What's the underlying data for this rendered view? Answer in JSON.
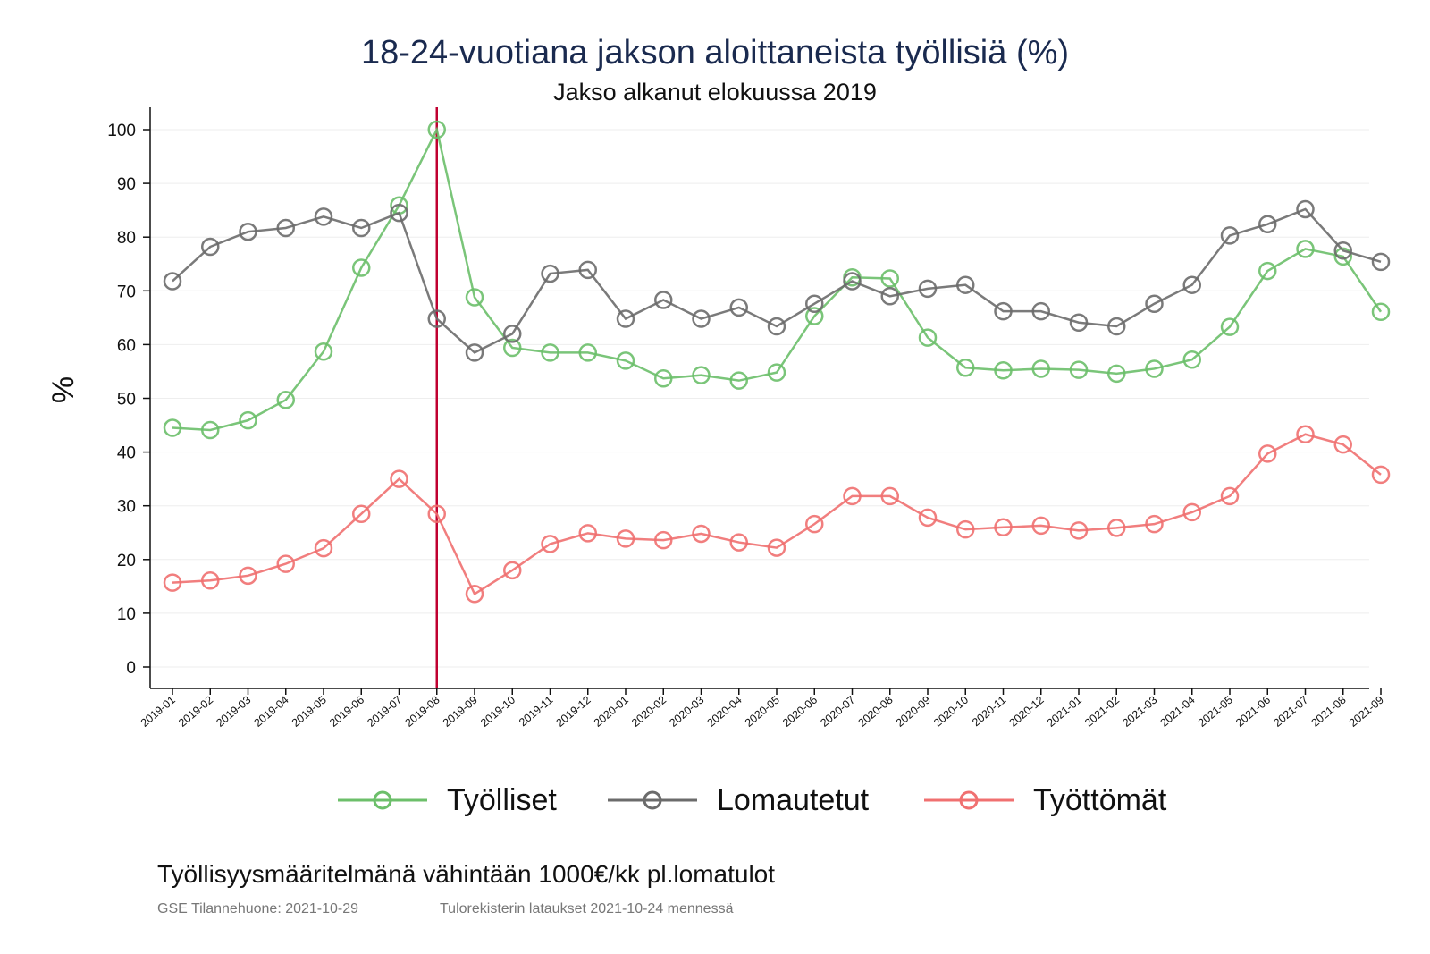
{
  "colors": {
    "tyolliset": "#6cbf6a",
    "lomautetut": "#6b6b6b",
    "tyottomat": "#f07070",
    "marker_line": "#c00030",
    "title": "#1a2a4f"
  },
  "chart_data": {
    "type": "line",
    "title": "18-24-vuotiana jakson aloittaneista työllisiä (%)",
    "subtitle": "Jakso alkanut elokuussa 2019",
    "ylabel": "%",
    "xlabel": "",
    "ylim": [
      0,
      100
    ],
    "yticks": [
      0,
      10,
      20,
      30,
      40,
      50,
      60,
      70,
      80,
      90,
      100
    ],
    "grid": true,
    "vertical_marker": "2019-08",
    "categories": [
      "2019-01",
      "2019-02",
      "2019-03",
      "2019-04",
      "2019-05",
      "2019-06",
      "2019-07",
      "2019-08",
      "2019-09",
      "2019-10",
      "2019-11",
      "2019-12",
      "2020-01",
      "2020-02",
      "2020-03",
      "2020-04",
      "2020-05",
      "2020-06",
      "2020-07",
      "2020-08",
      "2020-09",
      "2020-10",
      "2020-11",
      "2020-12",
      "2021-01",
      "2021-02",
      "2021-03",
      "2021-04",
      "2021-05",
      "2021-06",
      "2021-07",
      "2021-08",
      "2021-09"
    ],
    "series": [
      {
        "name": "Työlliset",
        "key": "tyolliset",
        "values": [
          44.5,
          44.1,
          45.9,
          49.7,
          58.7,
          74.3,
          85.9,
          100.0,
          68.8,
          59.4,
          58.5,
          58.5,
          57.0,
          53.7,
          54.3,
          53.3,
          54.8,
          65.3,
          72.5,
          72.3,
          61.3,
          55.7,
          55.2,
          55.5,
          55.3,
          54.6,
          55.5,
          57.2,
          63.3,
          73.7,
          77.8,
          76.4,
          66.1
        ]
      },
      {
        "name": "Lomautetut",
        "key": "lomautetut",
        "values": [
          71.8,
          78.2,
          81.0,
          81.7,
          83.8,
          81.7,
          84.5,
          64.8,
          58.5,
          62.0,
          73.2,
          73.9,
          64.8,
          68.3,
          64.8,
          66.9,
          63.4,
          67.6,
          71.8,
          69.0,
          70.4,
          71.1,
          66.2,
          66.2,
          64.1,
          63.4,
          67.6,
          71.1,
          80.3,
          82.4,
          85.2,
          77.5,
          75.4
        ]
      },
      {
        "name": "Työttömät",
        "key": "tyottomat",
        "values": [
          15.7,
          16.1,
          17.0,
          19.2,
          22.1,
          28.5,
          35.0,
          28.5,
          13.6,
          18.0,
          22.9,
          24.9,
          23.9,
          23.6,
          24.8,
          23.2,
          22.2,
          26.6,
          31.8,
          31.8,
          27.8,
          25.6,
          26.0,
          26.3,
          25.4,
          25.9,
          26.6,
          28.8,
          31.8,
          39.7,
          43.3,
          41.4,
          35.8
        ]
      }
    ]
  },
  "legend": {
    "items": [
      {
        "label": "Työlliset"
      },
      {
        "label": "Lomautetut"
      },
      {
        "label": "Työttömät"
      }
    ]
  },
  "footer": {
    "note": "Työllisyysmääritelmänä vähintään 1000€/kk pl.lomatulot",
    "source1": "GSE Tilannehuone: 2021-10-29",
    "source2": "Tulorekisterin lataukset 2021-10-24 mennessä"
  }
}
